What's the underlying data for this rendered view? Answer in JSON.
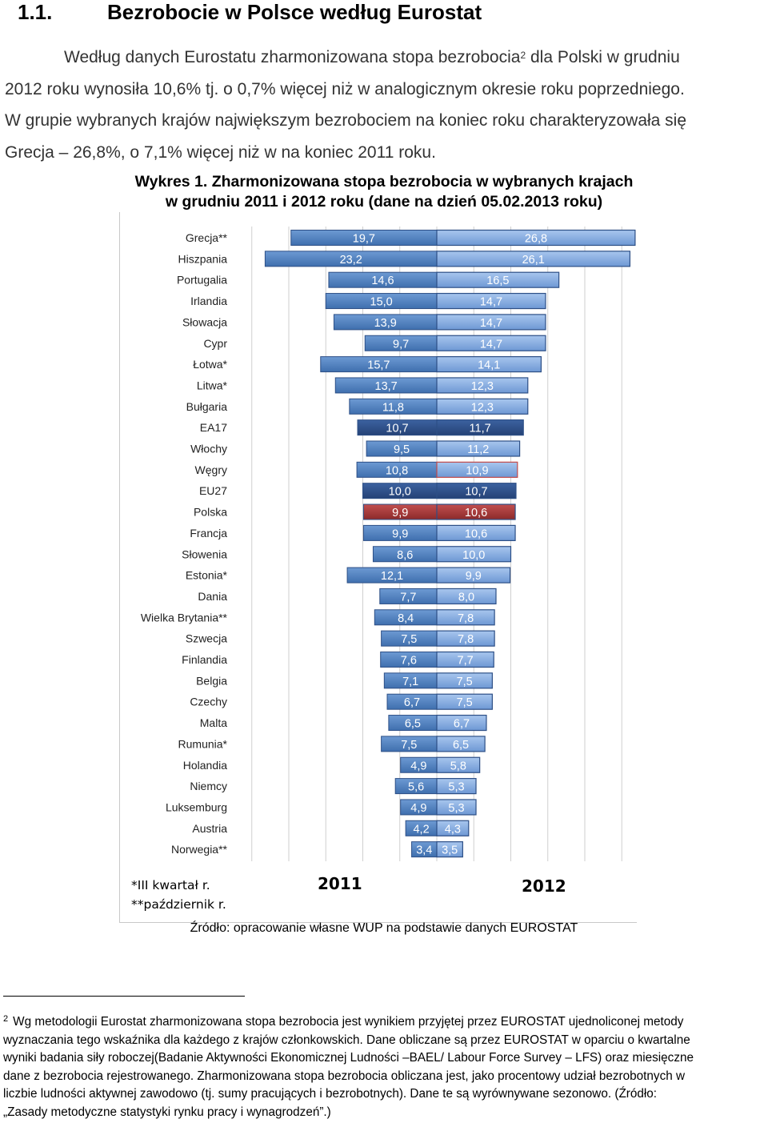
{
  "section": {
    "number": "1.1.",
    "title": "Bezrobocie w Polsce według Eurostat"
  },
  "intro": {
    "line1_a": "Według danych Eurostatu zharmonizowana stopa bezrobocia",
    "line1_sup": "2",
    "line1_b": " dla Polski w grudniu",
    "line2": "2012 roku wynosiła 10,6% tj. o 0,7% więcej niż w analogicznym okresie roku poprzedniego.",
    "line3": "W grupie wybranych krajów największym bezrobociem na koniec roku charakteryzowała się",
    "line4": "Grecja – 26,8%, o 7,1% więcej niż w na koniec 2011 roku."
  },
  "chart_title": {
    "line1": "Wykres 1. Zharmonizowana stopa bezrobocia w wybranych krajach",
    "line2": "w grudniu 2011 i 2012 roku (dane na dzień 05.02.2013 roku)"
  },
  "chart_data": {
    "type": "bar",
    "orientation": "horizontal-diverging",
    "title": "Wykres 1. Zharmonizowana stopa bezrobocia w wybranych krajach w grudniu 2011 i 2012 roku (dane na dzień 05.02.2013 roku)",
    "categories": [
      "Grecja**",
      "Hiszpania",
      "Portugalia",
      "Irlandia",
      "Słowacja",
      "Cypr",
      "Łotwa*",
      "Litwa*",
      "Bułgaria",
      "EA17",
      "Włochy",
      "Węgry",
      "EU27",
      "Polska",
      "Francja",
      "Słowenia",
      "Estonia*",
      "Dania",
      "Wielka Brytania**",
      "Szwecja",
      "Finlandia",
      "Belgia",
      "Czechy",
      "Malta",
      "Rumunia*",
      "Holandia",
      "Niemcy",
      "Luksemburg",
      "Austria",
      "Norwegia**"
    ],
    "series": [
      {
        "name": "2011",
        "direction": "left",
        "values": [
          19.7,
          23.2,
          14.6,
          15.0,
          13.9,
          9.7,
          15.7,
          13.7,
          11.8,
          10.7,
          9.5,
          10.8,
          10.0,
          9.9,
          9.9,
          8.6,
          12.1,
          7.7,
          8.4,
          7.5,
          7.6,
          7.1,
          6.7,
          6.5,
          7.5,
          4.9,
          5.6,
          4.9,
          4.2,
          3.4
        ],
        "labels": [
          "19,7",
          "23,2",
          "14,6",
          "15,0",
          "13,9",
          "9,7",
          "15,7",
          "13,7",
          "11,8",
          "10,7",
          "9,5",
          "10,8",
          "10,0",
          "9,9",
          "9,9",
          "8,6",
          "12,1",
          "7,7",
          "8,4",
          "7,5",
          "7,6",
          "7,1",
          "6,7",
          "6,5",
          "7,5",
          "4,9",
          "5,6",
          "4,9",
          "4,2",
          "3,4"
        ]
      },
      {
        "name": "2012",
        "direction": "right",
        "values": [
          26.8,
          26.1,
          16.5,
          14.7,
          14.7,
          14.7,
          14.1,
          12.3,
          12.3,
          11.7,
          11.2,
          10.9,
          10.7,
          10.6,
          10.6,
          10.0,
          9.9,
          8.0,
          7.8,
          7.8,
          7.7,
          7.5,
          7.5,
          6.7,
          6.5,
          5.8,
          5.3,
          5.3,
          4.3,
          3.5
        ],
        "labels": [
          "26,8",
          "26,1",
          "16,5",
          "14,7",
          "14,7",
          "14,7",
          "14,1",
          "12,3",
          "12,3",
          "11,7",
          "11,2",
          "10,9",
          "10,7",
          "10,6",
          "10,6",
          "10,0",
          "9,9",
          "8,0",
          "7,8",
          "7,8",
          "7,7",
          "7,5",
          "7,5",
          "6,7",
          "6,5",
          "5,8",
          "5,3",
          "5,3",
          "4,3",
          "3,5"
        ]
      }
    ],
    "highlight": {
      "Polska": "#a93a3a",
      "EU27": "#2e4f86",
      "EA17": "#2e4f86",
      "Węgry_2012_outline": "#c24a4a"
    },
    "colors": {
      "left_dark": "#3f6fae",
      "left_light": "#6d9ad3",
      "right_dark": "#6e98d4",
      "right_light": "#a8c6ee",
      "outline": "#2d4f86",
      "grid": "#cfcfcf"
    },
    "grid": true
  },
  "notes": {
    "quarter": "*III kwartał r.",
    "october": "**październik r."
  },
  "year_labels": {
    "left": "2011",
    "right": "2012"
  },
  "source": "Źródło: opracowanie własne WUP na podstawie danych EUROSTAT",
  "footnote": {
    "marker": "2",
    "line1": "Wg metodologii Eurostat zharmonizowana stopa bezrobocia jest wynikiem przyjętej przez EUROSTAT ujednoliconej metody",
    "line2": "wyznaczania tego wskaźnika dla każdego z krajów członkowskich. Dane obliczane są przez EUROSTAT w oparciu o kwartalne",
    "line3": "wyniki badania siły roboczej(Badanie Aktywności Ekonomicznej Ludności –BAEL/ Labour Force Survey – LFS) oraz miesięczne",
    "line4": "dane z bezrobocia rejestrowanego. Zharmonizowana stopa bezrobocia obliczana jest, jako procentowy udział bezrobotnych w",
    "line5": "liczbie ludności aktywnej zawodowo (tj. sumy pracujących i bezrobotnych). Dane te są wyrównywane sezonowo. (Źródło:",
    "line6": "„Zasady metodyczne statystyki rynku pracy i wynagrodzeń”.)"
  }
}
